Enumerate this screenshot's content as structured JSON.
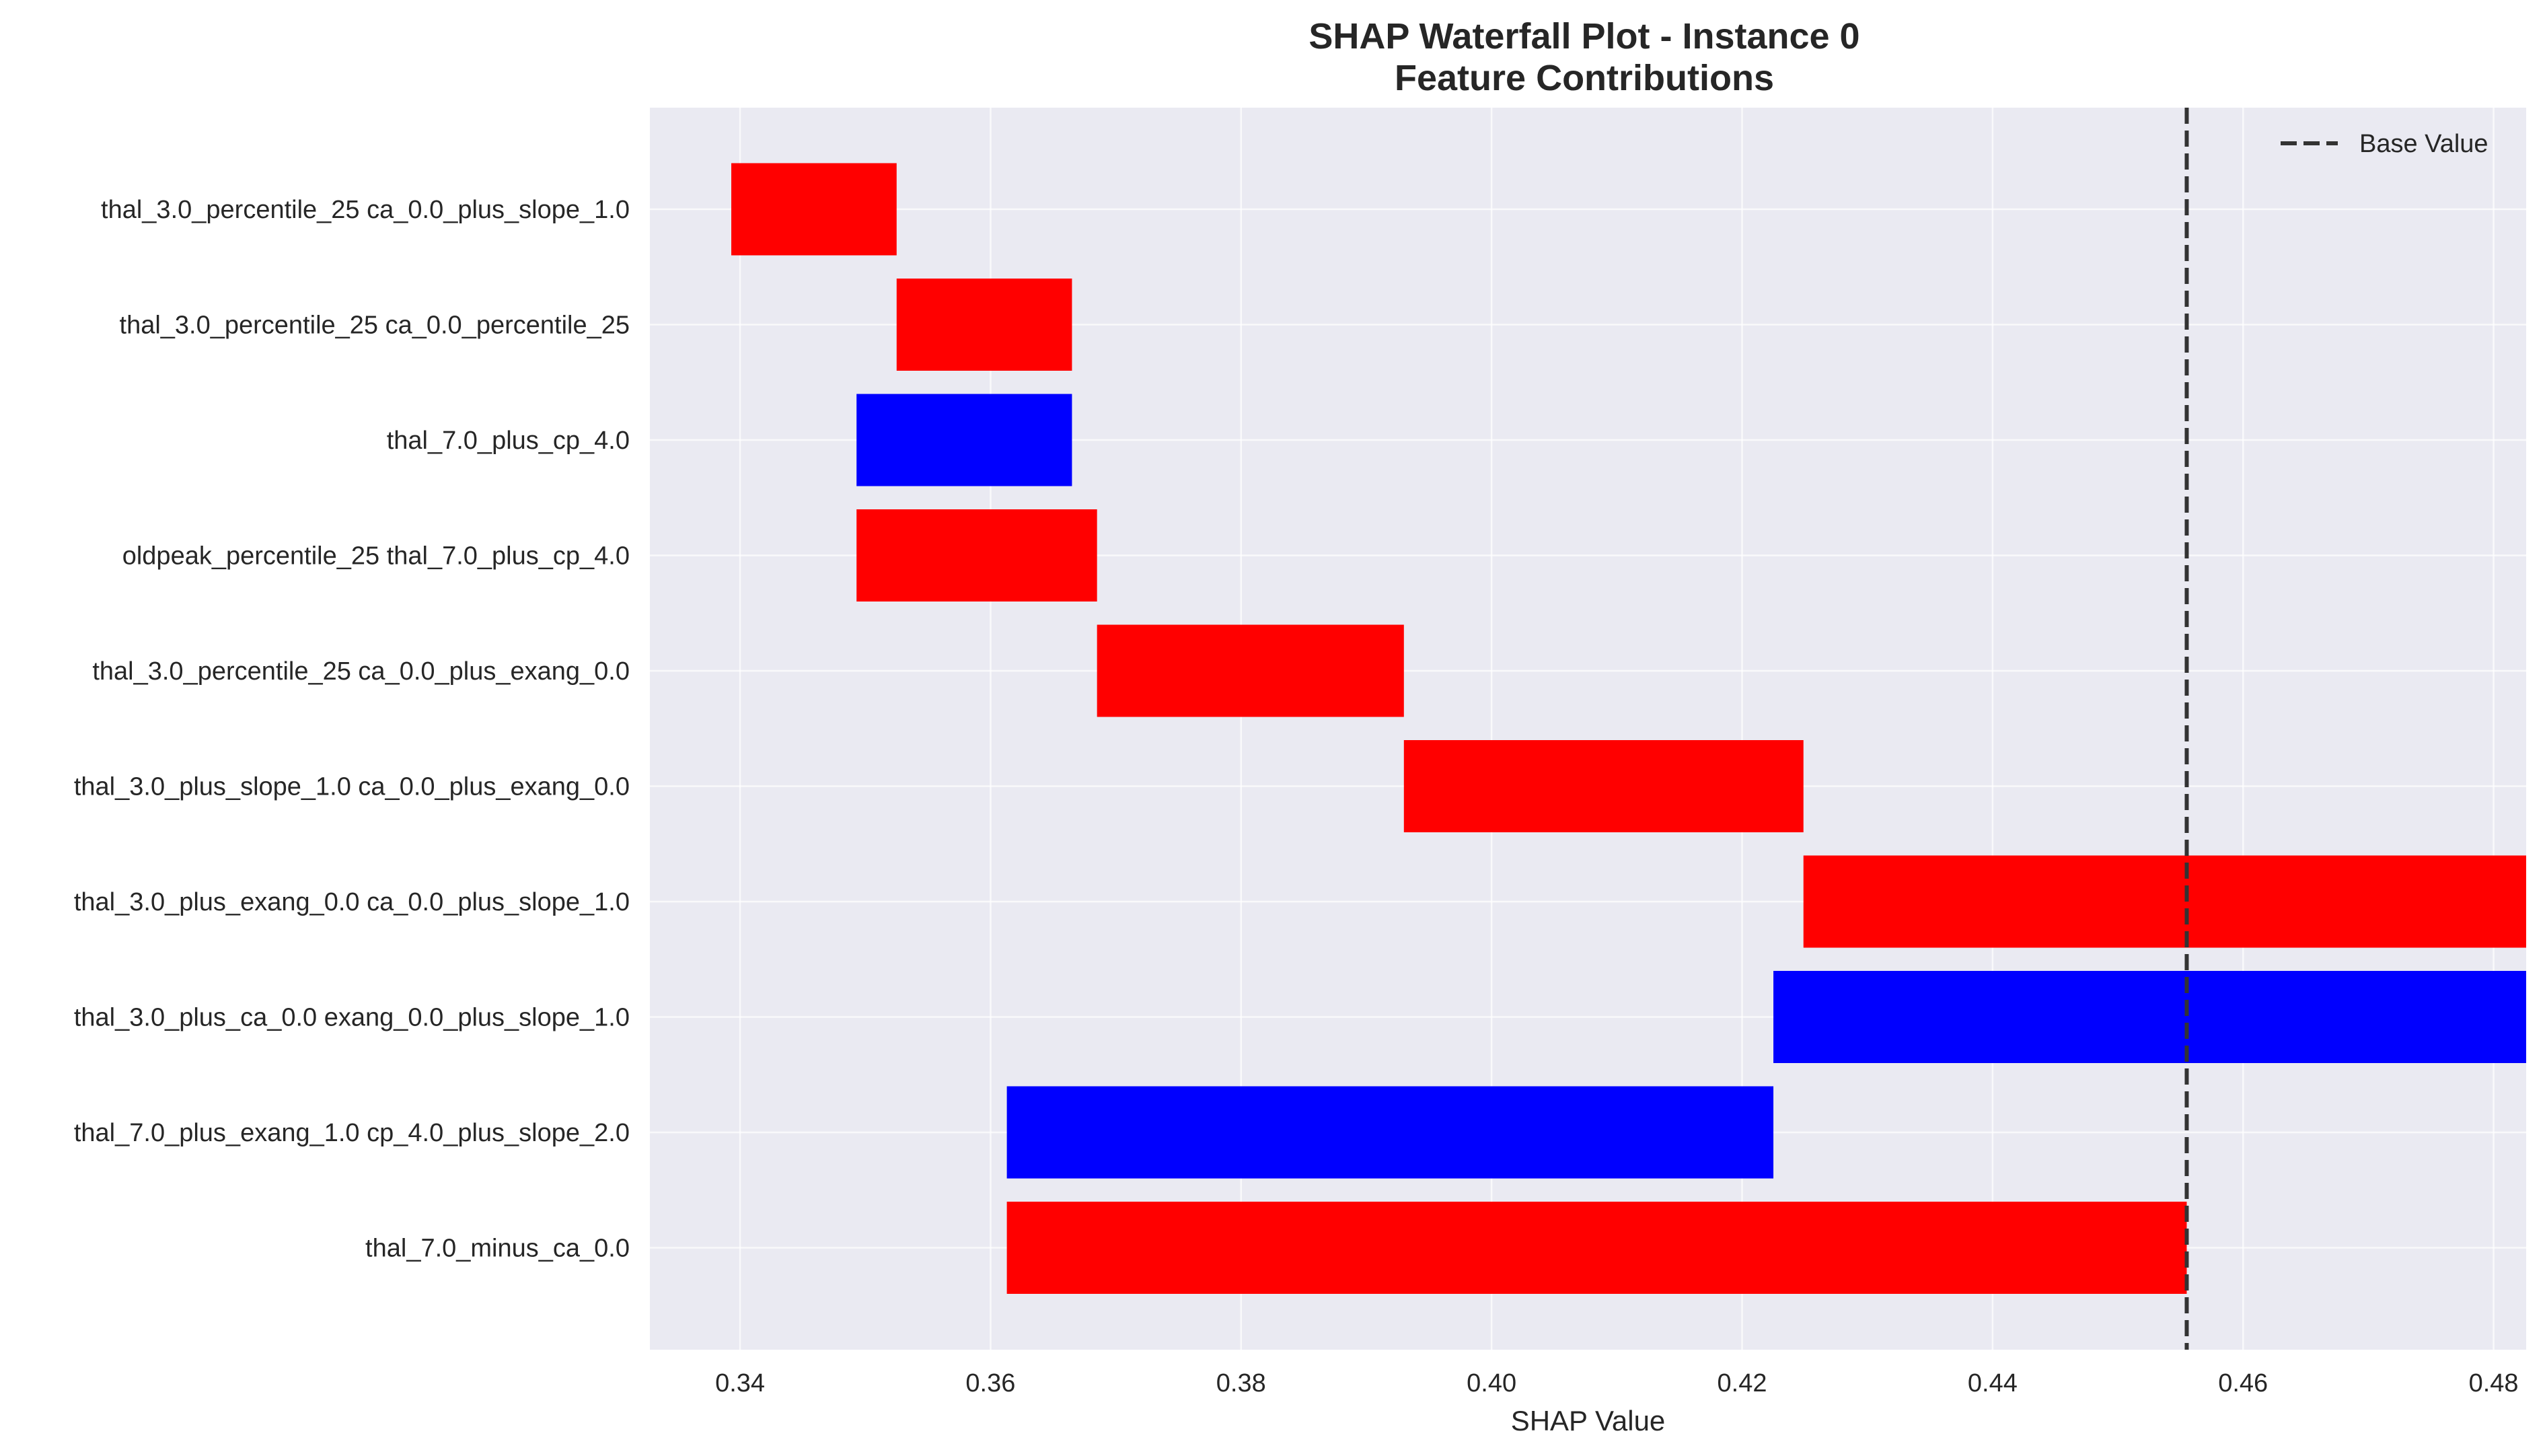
{
  "chart_data": {
    "type": "bar",
    "orientation": "horizontal",
    "title_lines": [
      "SHAP Waterfall Plot - Instance 0",
      "Feature Contributions"
    ],
    "xlabel": "SHAP Value",
    "ylabel": "",
    "xlim": [
      0.3328,
      0.4826
    ],
    "xticks": [
      0.34,
      0.36,
      0.38,
      0.4,
      0.42,
      0.44,
      0.46,
      0.48
    ],
    "xtick_labels": [
      "0.34",
      "0.36",
      "0.38",
      "0.40",
      "0.42",
      "0.44",
      "0.46",
      "0.48"
    ],
    "grid": true,
    "base_value": 0.4555,
    "legend": {
      "placement": "top-right",
      "entries": [
        "Base Value"
      ]
    },
    "bars": [
      {
        "label": "thal_3.0_percentile_25 ca_0.0_plus_slope_1.0",
        "start": 0.3393,
        "end": 0.3525,
        "color": "#ff0000"
      },
      {
        "label": "thal_3.0_percentile_25 ca_0.0_percentile_25",
        "start": 0.3525,
        "end": 0.3665,
        "color": "#ff0000"
      },
      {
        "label": "thal_7.0_plus_cp_4.0",
        "start": 0.3493,
        "end": 0.3665,
        "color": "#0000ff"
      },
      {
        "label": "oldpeak_percentile_25 thal_7.0_plus_cp_4.0",
        "start": 0.3493,
        "end": 0.3685,
        "color": "#ff0000"
      },
      {
        "label": "thal_3.0_percentile_25 ca_0.0_plus_exang_0.0",
        "start": 0.3685,
        "end": 0.393,
        "color": "#ff0000"
      },
      {
        "label": "thal_3.0_plus_slope_1.0 ca_0.0_plus_exang_0.0",
        "start": 0.393,
        "end": 0.4249,
        "color": "#ff0000"
      },
      {
        "label": "thal_3.0_plus_exang_0.0 ca_0.0_plus_slope_1.0",
        "start": 0.4249,
        "end": 0.4826,
        "color": "#ff0000"
      },
      {
        "label": "thal_3.0_plus_ca_0.0 exang_0.0_plus_slope_1.0",
        "start": 0.4225,
        "end": 0.4826,
        "color": "#0000ff"
      },
      {
        "label": "thal_7.0_plus_exang_1.0 cp_4.0_plus_slope_2.0",
        "start": 0.3613,
        "end": 0.4225,
        "color": "#0000ff"
      },
      {
        "label": "thal_7.0_minus_ca_0.0",
        "start": 0.3613,
        "end": 0.4555,
        "color": "#ff0000"
      }
    ]
  },
  "colors": {
    "plot_background": "#eaeaf2",
    "grid": "#ffffff",
    "base_line": "#333333"
  }
}
